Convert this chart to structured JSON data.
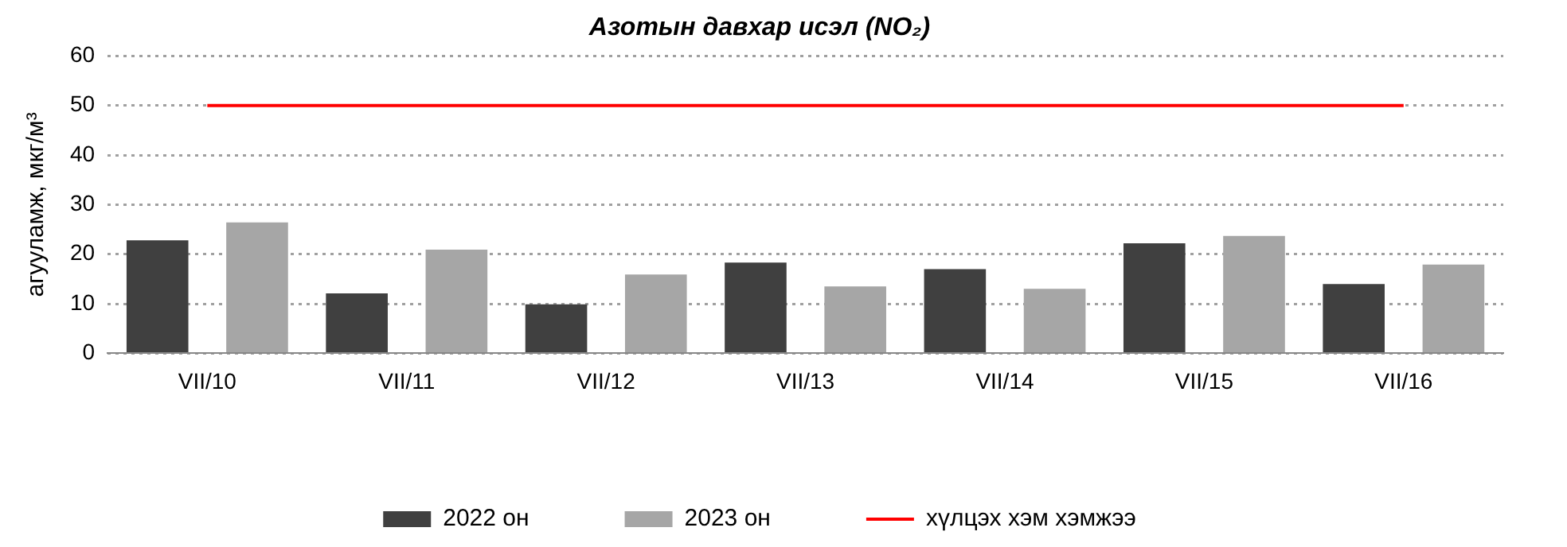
{
  "chart_data": {
    "type": "bar",
    "title": "Азотын давхар исэл (NO₂)",
    "ylabel": "агууламж, мкг/м³",
    "categories": [
      "VII/10",
      "VII/11",
      "VII/12",
      "VII/13",
      "VII/14",
      "VII/15",
      "VII/16"
    ],
    "series": [
      {
        "name": "2022 он",
        "color": "#404040",
        "values": [
          22.8,
          12.1,
          9.9,
          18.3,
          17.0,
          22.2,
          14.0
        ]
      },
      {
        "name": "2023 он",
        "color": "#a6a6a6",
        "values": [
          26.4,
          20.9,
          15.9,
          13.5,
          13.0,
          23.7,
          17.9
        ]
      },
      {
        "name": "хүлцэх хэм хэмжээ",
        "type": "line",
        "color": "#ff0000",
        "values": [
          50,
          50,
          50,
          50,
          50,
          50,
          50
        ]
      }
    ],
    "ylim": [
      0,
      60
    ],
    "yticks": [
      0,
      10,
      20,
      30,
      40,
      50,
      60
    ],
    "grid": "y",
    "legend": "bottom",
    "marker": "none",
    "line_style": "solid"
  }
}
